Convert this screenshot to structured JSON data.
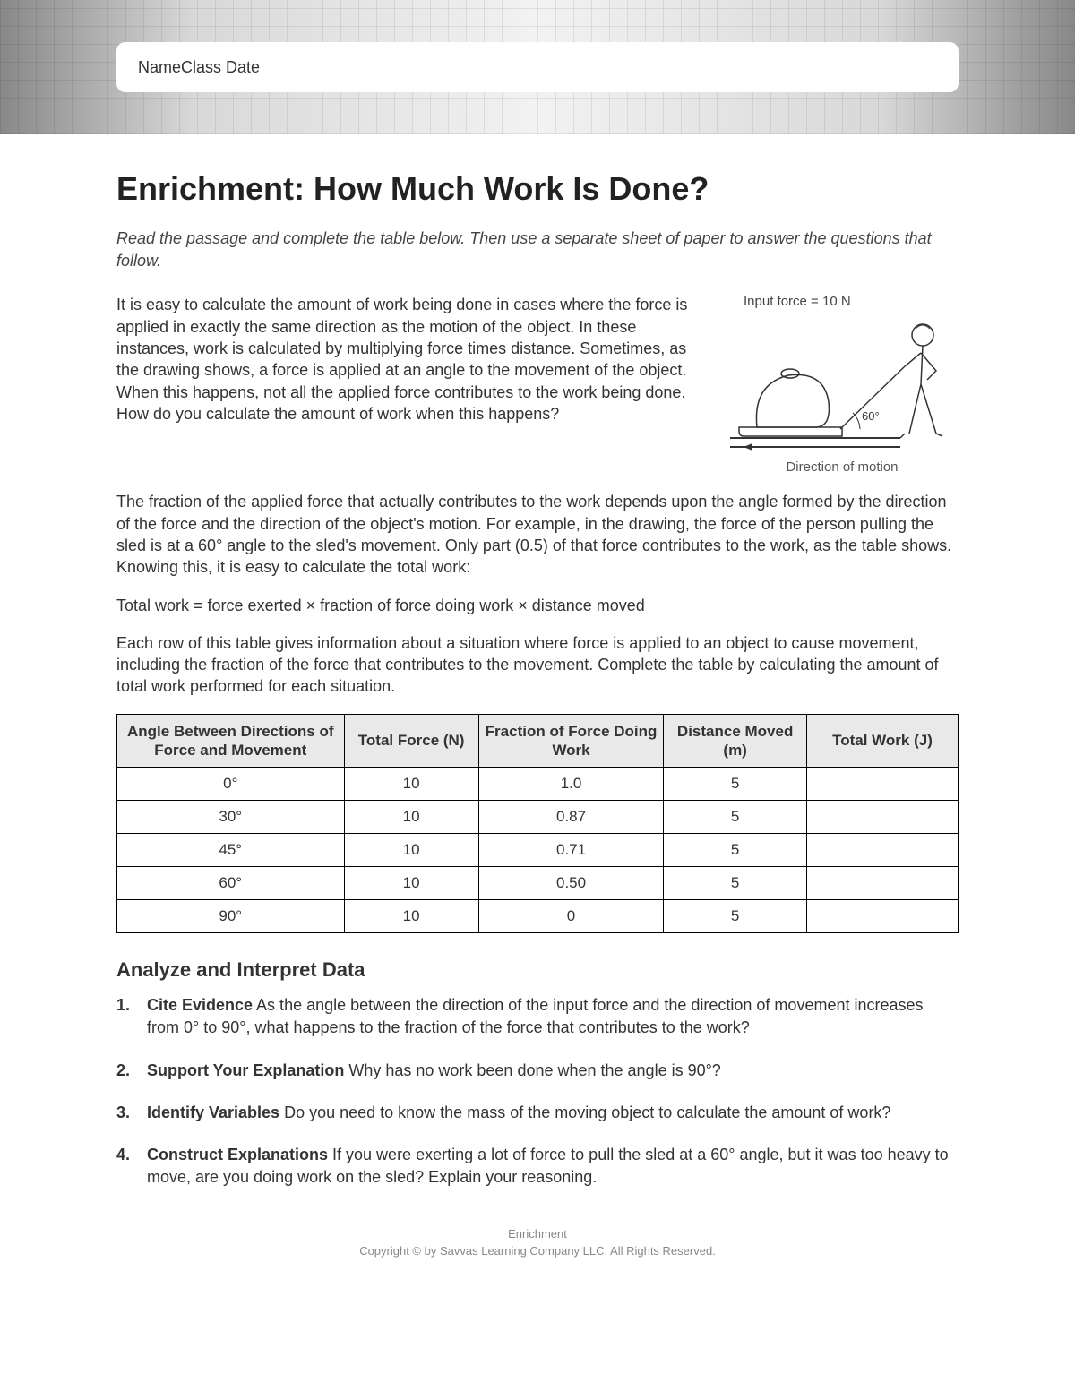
{
  "header": {
    "fields": "NameClass Date"
  },
  "title": "Enrichment: How Much Work Is Done?",
  "instructions": "Read the passage and complete the table below. Then use a separate sheet of paper to answer the questions that follow.",
  "paragraphs": {
    "p1": "It is easy to calculate the amount of work being done in cases where the force is applied in exactly the same direction as the motion of the object. In these instances, work is calculated by multiplying force times distance. Sometimes, as the drawing shows, a force is applied at an angle to the movement of the object. When this happens, not all the applied force contributes to the work being done. How do you calculate the amount of work when this happens?",
    "p2a": "The fraction of the applied force that actually contributes to the work depends upon the angle formed by the direction of the force",
    "p2b": "and the direction of the object's motion. For example, in the drawing, the force of the person pulling the sled is at a 60° angle to the sled's movement. Only part (0.5) of that force contributes to the work, as the table shows. Knowing this, it is easy to calculate the total work:",
    "formula": "Total work = force exerted × fraction of force doing work × distance moved",
    "p3": "Each row of this table gives information about a situation where force is applied to an object to cause movement, including the fraction of the force that contributes to the movement. Complete the table by calculating the amount of total work performed for each situation."
  },
  "figure": {
    "input_force_label": "Input force = 10 N",
    "angle_label": "60°",
    "caption": "Direction of motion"
  },
  "table": {
    "columns": [
      "Angle Between Directions of Force and Movement",
      "Total Force (N)",
      "Fraction of Force Doing Work",
      "Distance Moved (m)",
      "Total Work (J)"
    ],
    "col_widths": [
      "27%",
      "16%",
      "22%",
      "17%",
      "18%"
    ],
    "rows": [
      [
        "0°",
        "10",
        "1.0",
        "5",
        ""
      ],
      [
        "30°",
        "10",
        "0.87",
        "5",
        ""
      ],
      [
        "45°",
        "10",
        "0.71",
        "5",
        ""
      ],
      [
        "60°",
        "10",
        "0.50",
        "5",
        ""
      ],
      [
        "90°",
        "10",
        "0",
        "5",
        ""
      ]
    ]
  },
  "section_heading": "Analyze and Interpret Data",
  "questions": [
    {
      "lead": "Cite Evidence",
      "text": "  As the angle between the direction of the input force and the direction of movement increases from 0° to 90°, what happens to the fraction of the force that contributes to the work?"
    },
    {
      "lead": "Support Your Explanation",
      "text": "  Why has no work been done when the angle is 90°?"
    },
    {
      "lead": "Identify Variables",
      "text": "  Do you need to know the mass of the moving object to calculate the amount of work?"
    },
    {
      "lead": "Construct Explanations",
      "text": "  If you were exerting a lot of force to pull the sled at a 60° angle, but it was too heavy to move, are you doing work on the sled? Explain your reasoning."
    }
  ],
  "footer": {
    "line1": "Enrichment",
    "line2": "Copyright © by Savvas Learning Company LLC. All Rights Reserved."
  }
}
